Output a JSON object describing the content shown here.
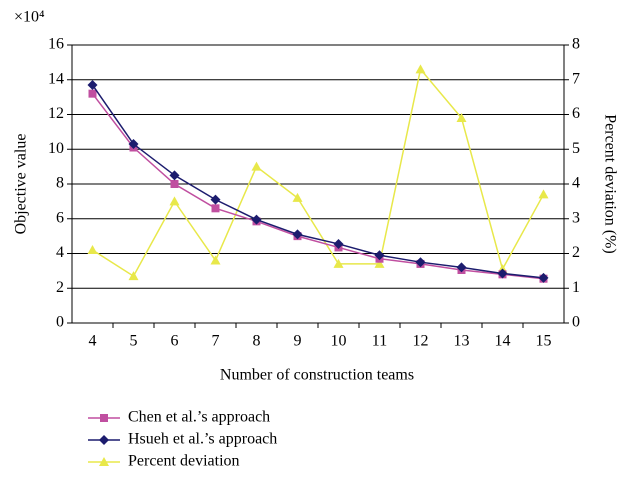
{
  "chart_data": {
    "type": "line",
    "y_scale_label": "×10⁴",
    "xlabel": "Number of construction teams",
    "ylabel": "Objective value",
    "y2label": "Percent deviation (%)",
    "categories": [
      "4",
      "5",
      "6",
      "7",
      "8",
      "9",
      "10",
      "11",
      "12",
      "13",
      "14",
      "15"
    ],
    "ylim": [
      0,
      16
    ],
    "yticks": [
      0,
      2,
      4,
      6,
      8,
      10,
      12,
      14,
      16
    ],
    "y2lim": [
      0,
      8
    ],
    "y2ticks": [
      0,
      1,
      2,
      3,
      4,
      5,
      6,
      7,
      8
    ],
    "grid": true,
    "series": [
      {
        "name": "Chen et al.’s approach",
        "color": "#c04fa0",
        "marker": "square",
        "values": [
          13.2,
          10.1,
          8.0,
          6.6,
          5.85,
          5.0,
          4.35,
          3.7,
          3.4,
          3.05,
          2.8,
          2.55
        ]
      },
      {
        "name": "Hsueh et al.’s approach",
        "color": "#1c1c6e",
        "marker": "diamond",
        "values": [
          13.7,
          10.3,
          8.5,
          7.1,
          5.95,
          5.1,
          4.55,
          3.9,
          3.5,
          3.2,
          2.85,
          2.6
        ]
      },
      {
        "name": "Percent deviation",
        "color": "#e8e84a",
        "marker": "triangle",
        "axis": "y2",
        "values": [
          2.1,
          1.35,
          3.5,
          1.8,
          4.5,
          3.6,
          1.7,
          1.7,
          7.3,
          5.9,
          1.55,
          3.7
        ]
      }
    ]
  }
}
